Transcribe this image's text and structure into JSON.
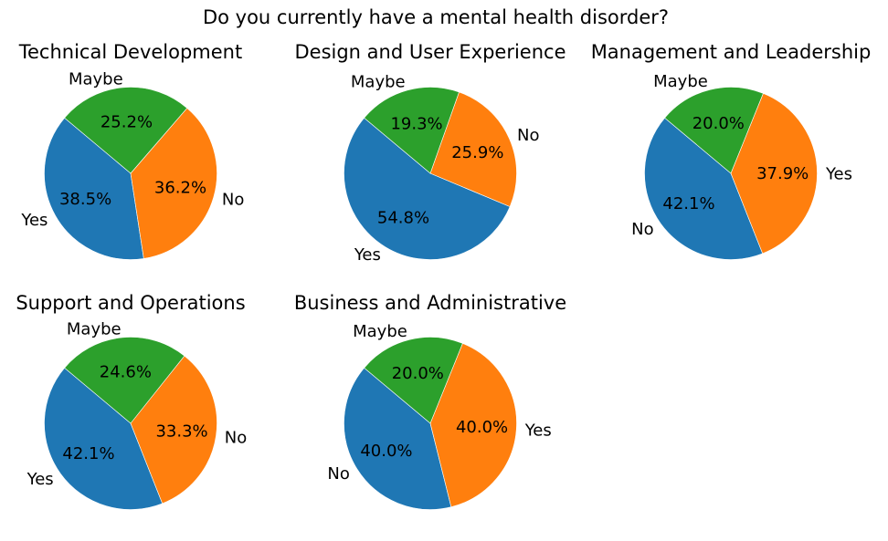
{
  "suptitle": "Do you currently have a mental health disorder?",
  "colors": {
    "blue": "#1f77b4",
    "orange": "#ff7f0e",
    "green": "#2ca02c"
  },
  "chart_data": [
    {
      "type": "pie",
      "title": "Technical Development",
      "slices": [
        {
          "label": "Yes",
          "value": 38.5,
          "color": "#1f77b4"
        },
        {
          "label": "No",
          "value": 36.2,
          "color": "#ff7f0e"
        },
        {
          "label": "Maybe",
          "value": 25.2,
          "color": "#2ca02c"
        }
      ]
    },
    {
      "type": "pie",
      "title": "Design and User Experience",
      "slices": [
        {
          "label": "Yes",
          "value": 54.8,
          "color": "#1f77b4"
        },
        {
          "label": "No",
          "value": 25.9,
          "color": "#ff7f0e"
        },
        {
          "label": "Maybe",
          "value": 19.3,
          "color": "#2ca02c"
        }
      ]
    },
    {
      "type": "pie",
      "title": "Management and Leadership",
      "slices": [
        {
          "label": "No",
          "value": 42.1,
          "color": "#1f77b4"
        },
        {
          "label": "Yes",
          "value": 37.9,
          "color": "#ff7f0e"
        },
        {
          "label": "Maybe",
          "value": 20.0,
          "color": "#2ca02c"
        }
      ]
    },
    {
      "type": "pie",
      "title": "Support and Operations",
      "slices": [
        {
          "label": "Yes",
          "value": 42.1,
          "color": "#1f77b4"
        },
        {
          "label": "No",
          "value": 33.3,
          "color": "#ff7f0e"
        },
        {
          "label": "Maybe",
          "value": 24.6,
          "color": "#2ca02c"
        }
      ]
    },
    {
      "type": "pie",
      "title": "Business and Administrative",
      "slices": [
        {
          "label": "No",
          "value": 40.0,
          "color": "#1f77b4"
        },
        {
          "label": "Yes",
          "value": 40.0,
          "color": "#ff7f0e"
        },
        {
          "label": "Maybe",
          "value": 20.0,
          "color": "#2ca02c"
        }
      ]
    }
  ]
}
